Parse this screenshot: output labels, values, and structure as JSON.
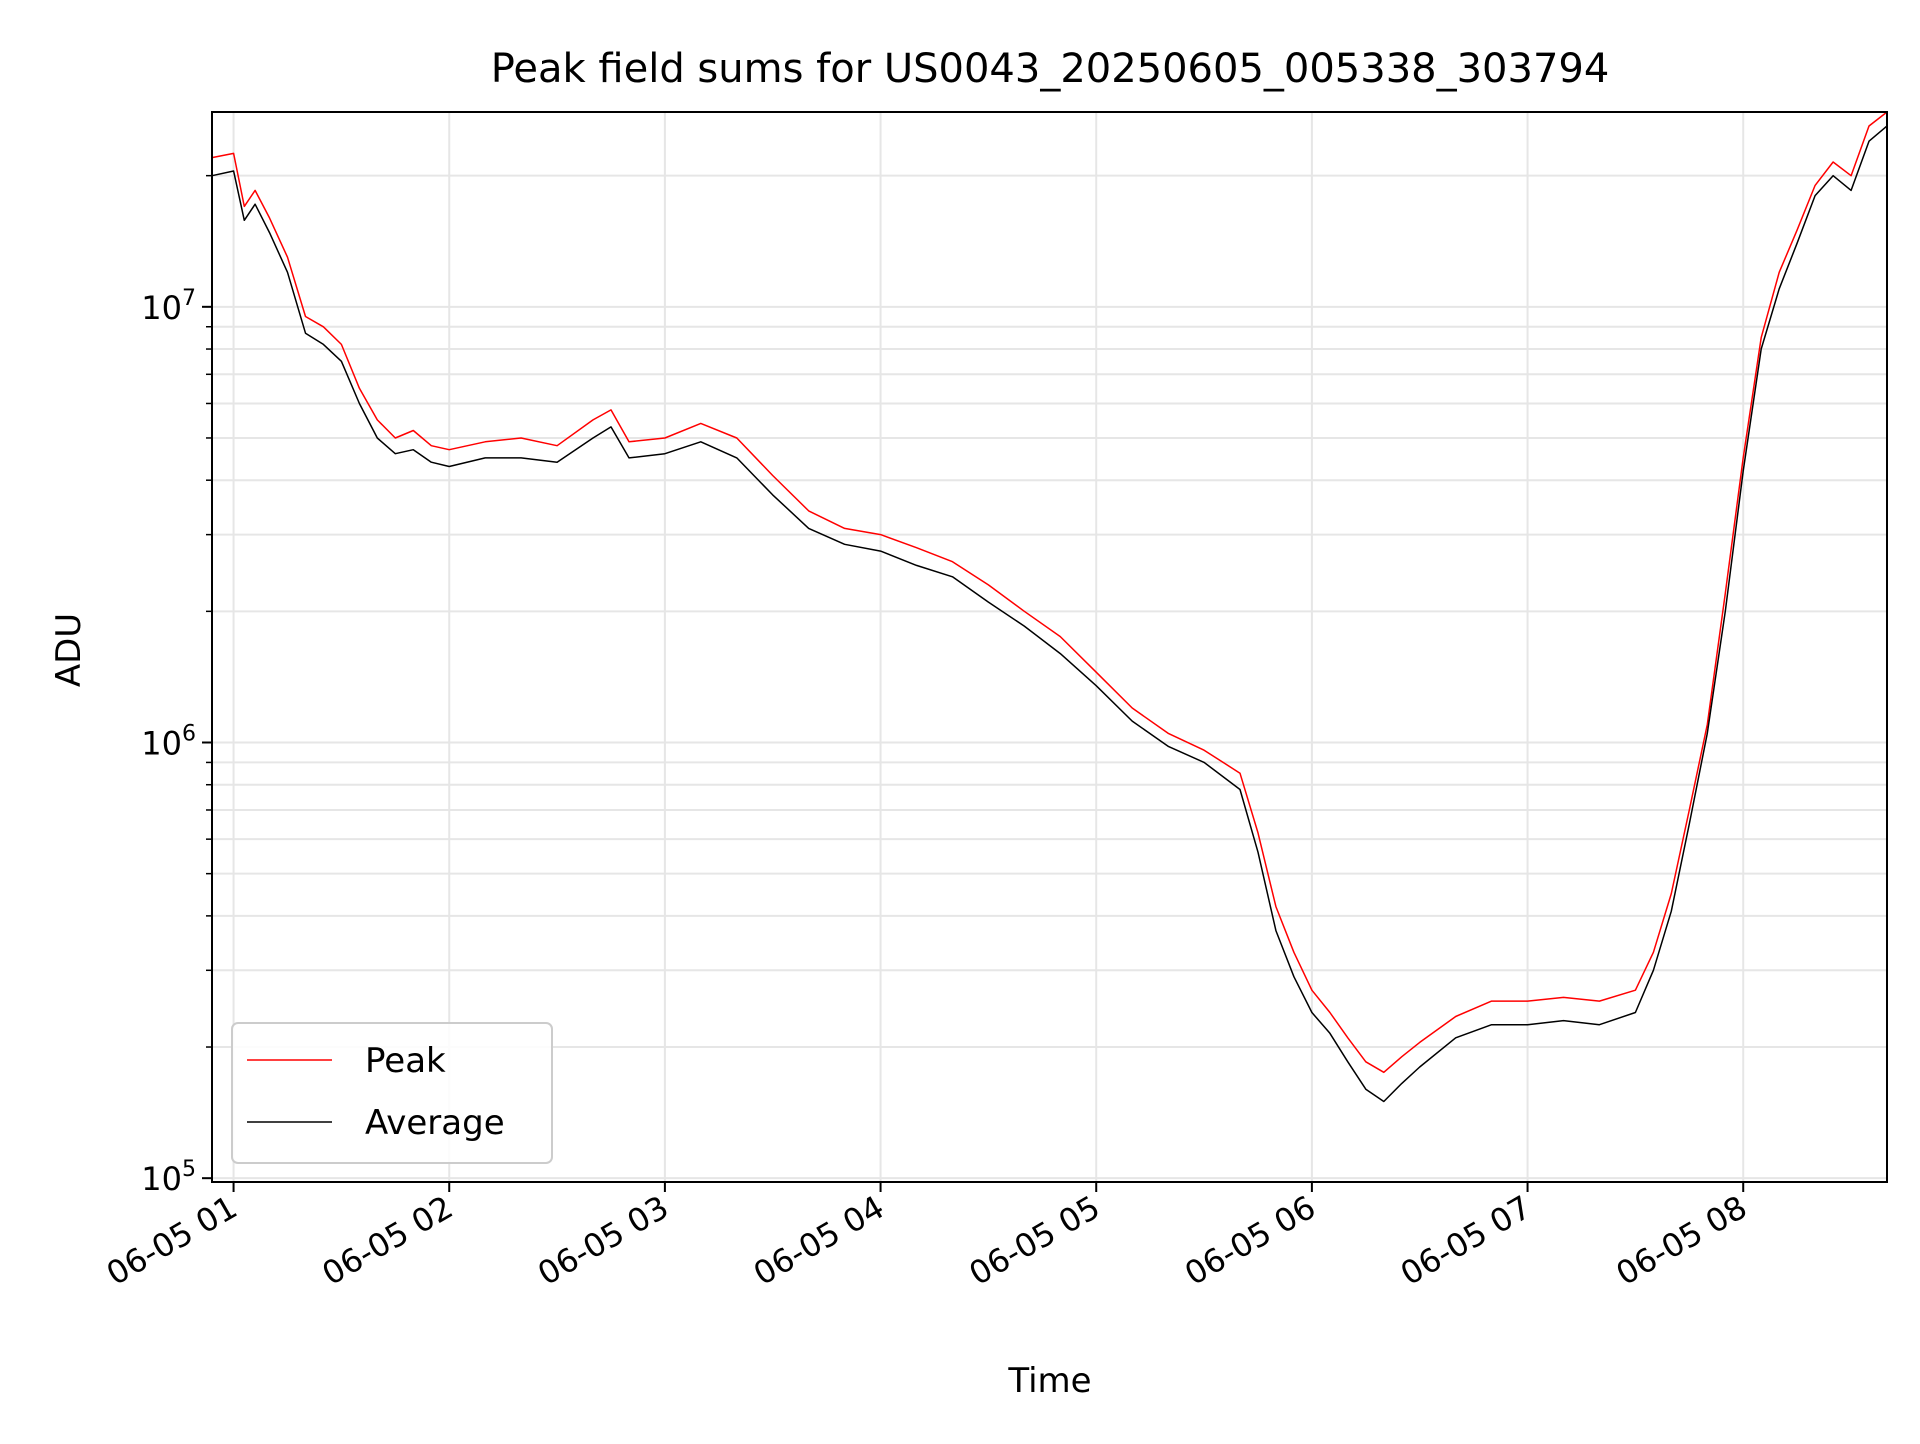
{
  "chart_data": {
    "type": "line",
    "title": "Peak field sums for US0043_20250605_005338_303794",
    "xlabel": "Time",
    "ylabel": "ADU",
    "yscale": "log",
    "ylim": [
      98000,
      28000000
    ],
    "xlim": [
      "2025-06-05 00:54",
      "2025-06-05 08:40"
    ],
    "grid": true,
    "legend_position": "lower-left",
    "x_ticks": [
      {
        "t": "2025-06-05 01:00",
        "label": "06-05 01"
      },
      {
        "t": "2025-06-05 02:00",
        "label": "06-05 02"
      },
      {
        "t": "2025-06-05 03:00",
        "label": "06-05 03"
      },
      {
        "t": "2025-06-05 04:00",
        "label": "06-05 04"
      },
      {
        "t": "2025-06-05 05:00",
        "label": "06-05 05"
      },
      {
        "t": "2025-06-05 06:00",
        "label": "06-05 06"
      },
      {
        "t": "2025-06-05 07:00",
        "label": "06-05 07"
      },
      {
        "t": "2025-06-05 08:00",
        "label": "06-05 08"
      }
    ],
    "y_ticks": [
      {
        "v": 100000,
        "base": "10",
        "exp": "5"
      },
      {
        "v": 1000000,
        "base": "10",
        "exp": "6"
      },
      {
        "v": 10000000,
        "base": "10",
        "exp": "7"
      }
    ],
    "series": [
      {
        "name": "Peak",
        "color": "#ff0000",
        "points": [
          [
            "2025-06-05 00:54",
            22000000
          ],
          [
            "2025-06-05 01:00",
            22500000
          ],
          [
            "2025-06-05 01:03",
            17000000
          ],
          [
            "2025-06-05 01:06",
            18500000
          ],
          [
            "2025-06-05 01:10",
            16000000
          ],
          [
            "2025-06-05 01:15",
            13000000
          ],
          [
            "2025-06-05 01:20",
            9500000
          ],
          [
            "2025-06-05 01:25",
            9000000
          ],
          [
            "2025-06-05 01:30",
            8200000
          ],
          [
            "2025-06-05 01:35",
            6500000
          ],
          [
            "2025-06-05 01:40",
            5500000
          ],
          [
            "2025-06-05 01:45",
            5000000
          ],
          [
            "2025-06-05 01:50",
            5200000
          ],
          [
            "2025-06-05 01:55",
            4800000
          ],
          [
            "2025-06-05 02:00",
            4700000
          ],
          [
            "2025-06-05 02:10",
            4900000
          ],
          [
            "2025-06-05 02:20",
            5000000
          ],
          [
            "2025-06-05 02:30",
            4800000
          ],
          [
            "2025-06-05 02:40",
            5500000
          ],
          [
            "2025-06-05 02:45",
            5800000
          ],
          [
            "2025-06-05 02:50",
            4900000
          ],
          [
            "2025-06-05 03:00",
            5000000
          ],
          [
            "2025-06-05 03:10",
            5400000
          ],
          [
            "2025-06-05 03:20",
            5000000
          ],
          [
            "2025-06-05 03:30",
            4100000
          ],
          [
            "2025-06-05 03:40",
            3400000
          ],
          [
            "2025-06-05 03:50",
            3100000
          ],
          [
            "2025-06-05 04:00",
            3000000
          ],
          [
            "2025-06-05 04:10",
            2800000
          ],
          [
            "2025-06-05 04:20",
            2600000
          ],
          [
            "2025-06-05 04:30",
            2300000
          ],
          [
            "2025-06-05 04:40",
            2000000
          ],
          [
            "2025-06-05 04:50",
            1750000
          ],
          [
            "2025-06-05 05:00",
            1450000
          ],
          [
            "2025-06-05 05:10",
            1200000
          ],
          [
            "2025-06-05 05:20",
            1050000
          ],
          [
            "2025-06-05 05:30",
            960000
          ],
          [
            "2025-06-05 05:40",
            850000
          ],
          [
            "2025-06-05 05:45",
            620000
          ],
          [
            "2025-06-05 05:50",
            420000
          ],
          [
            "2025-06-05 05:55",
            330000
          ],
          [
            "2025-06-05 06:00",
            270000
          ],
          [
            "2025-06-05 06:05",
            240000
          ],
          [
            "2025-06-05 06:10",
            210000
          ],
          [
            "2025-06-05 06:15",
            185000
          ],
          [
            "2025-06-05 06:20",
            175000
          ],
          [
            "2025-06-05 06:25",
            190000
          ],
          [
            "2025-06-05 06:30",
            205000
          ],
          [
            "2025-06-05 06:40",
            235000
          ],
          [
            "2025-06-05 06:50",
            255000
          ],
          [
            "2025-06-05 07:00",
            255000
          ],
          [
            "2025-06-05 07:10",
            260000
          ],
          [
            "2025-06-05 07:20",
            255000
          ],
          [
            "2025-06-05 07:30",
            270000
          ],
          [
            "2025-06-05 07:35",
            330000
          ],
          [
            "2025-06-05 07:40",
            450000
          ],
          [
            "2025-06-05 07:45",
            700000
          ],
          [
            "2025-06-05 07:50",
            1100000
          ],
          [
            "2025-06-05 07:55",
            2200000
          ],
          [
            "2025-06-05 08:00",
            4500000
          ],
          [
            "2025-06-05 08:05",
            8500000
          ],
          [
            "2025-06-05 08:10",
            12000000
          ],
          [
            "2025-06-05 08:15",
            15000000
          ],
          [
            "2025-06-05 08:20",
            19000000
          ],
          [
            "2025-06-05 08:25",
            21500000
          ],
          [
            "2025-06-05 08:30",
            20000000
          ],
          [
            "2025-06-05 08:35",
            26000000
          ],
          [
            "2025-06-05 08:40",
            28000000
          ]
        ]
      },
      {
        "name": "Average",
        "color": "#000000",
        "points": [
          [
            "2025-06-05 00:54",
            20000000
          ],
          [
            "2025-06-05 01:00",
            20500000
          ],
          [
            "2025-06-05 01:03",
            15800000
          ],
          [
            "2025-06-05 01:06",
            17200000
          ],
          [
            "2025-06-05 01:10",
            14800000
          ],
          [
            "2025-06-05 01:15",
            12000000
          ],
          [
            "2025-06-05 01:20",
            8700000
          ],
          [
            "2025-06-05 01:25",
            8200000
          ],
          [
            "2025-06-05 01:30",
            7500000
          ],
          [
            "2025-06-05 01:35",
            6000000
          ],
          [
            "2025-06-05 01:40",
            5000000
          ],
          [
            "2025-06-05 01:45",
            4600000
          ],
          [
            "2025-06-05 01:50",
            4700000
          ],
          [
            "2025-06-05 01:55",
            4400000
          ],
          [
            "2025-06-05 02:00",
            4300000
          ],
          [
            "2025-06-05 02:10",
            4500000
          ],
          [
            "2025-06-05 02:20",
            4500000
          ],
          [
            "2025-06-05 02:30",
            4400000
          ],
          [
            "2025-06-05 02:40",
            5000000
          ],
          [
            "2025-06-05 02:45",
            5300000
          ],
          [
            "2025-06-05 02:50",
            4500000
          ],
          [
            "2025-06-05 03:00",
            4600000
          ],
          [
            "2025-06-05 03:10",
            4900000
          ],
          [
            "2025-06-05 03:20",
            4500000
          ],
          [
            "2025-06-05 03:30",
            3700000
          ],
          [
            "2025-06-05 03:40",
            3100000
          ],
          [
            "2025-06-05 03:50",
            2850000
          ],
          [
            "2025-06-05 04:00",
            2750000
          ],
          [
            "2025-06-05 04:10",
            2550000
          ],
          [
            "2025-06-05 04:20",
            2400000
          ],
          [
            "2025-06-05 04:30",
            2100000
          ],
          [
            "2025-06-05 04:40",
            1850000
          ],
          [
            "2025-06-05 04:50",
            1600000
          ],
          [
            "2025-06-05 05:00",
            1350000
          ],
          [
            "2025-06-05 05:10",
            1120000
          ],
          [
            "2025-06-05 05:20",
            980000
          ],
          [
            "2025-06-05 05:30",
            900000
          ],
          [
            "2025-06-05 05:40",
            780000
          ],
          [
            "2025-06-05 05:45",
            560000
          ],
          [
            "2025-06-05 05:50",
            370000
          ],
          [
            "2025-06-05 05:55",
            290000
          ],
          [
            "2025-06-05 06:00",
            240000
          ],
          [
            "2025-06-05 06:05",
            215000
          ],
          [
            "2025-06-05 06:10",
            185000
          ],
          [
            "2025-06-05 06:15",
            160000
          ],
          [
            "2025-06-05 06:20",
            150000
          ],
          [
            "2025-06-05 06:25",
            165000
          ],
          [
            "2025-06-05 06:30",
            180000
          ],
          [
            "2025-06-05 06:40",
            210000
          ],
          [
            "2025-06-05 06:50",
            225000
          ],
          [
            "2025-06-05 07:00",
            225000
          ],
          [
            "2025-06-05 07:10",
            230000
          ],
          [
            "2025-06-05 07:20",
            225000
          ],
          [
            "2025-06-05 07:30",
            240000
          ],
          [
            "2025-06-05 07:35",
            300000
          ],
          [
            "2025-06-05 07:40",
            410000
          ],
          [
            "2025-06-05 07:45",
            650000
          ],
          [
            "2025-06-05 07:50",
            1050000
          ],
          [
            "2025-06-05 07:55",
            2000000
          ],
          [
            "2025-06-05 08:00",
            4200000
          ],
          [
            "2025-06-05 08:05",
            8000000
          ],
          [
            "2025-06-05 08:10",
            11000000
          ],
          [
            "2025-06-05 08:15",
            14000000
          ],
          [
            "2025-06-05 08:20",
            18000000
          ],
          [
            "2025-06-05 08:25",
            20000000
          ],
          [
            "2025-06-05 08:30",
            18500000
          ],
          [
            "2025-06-05 08:35",
            24000000
          ],
          [
            "2025-06-05 08:40",
            26000000
          ]
        ]
      }
    ]
  }
}
